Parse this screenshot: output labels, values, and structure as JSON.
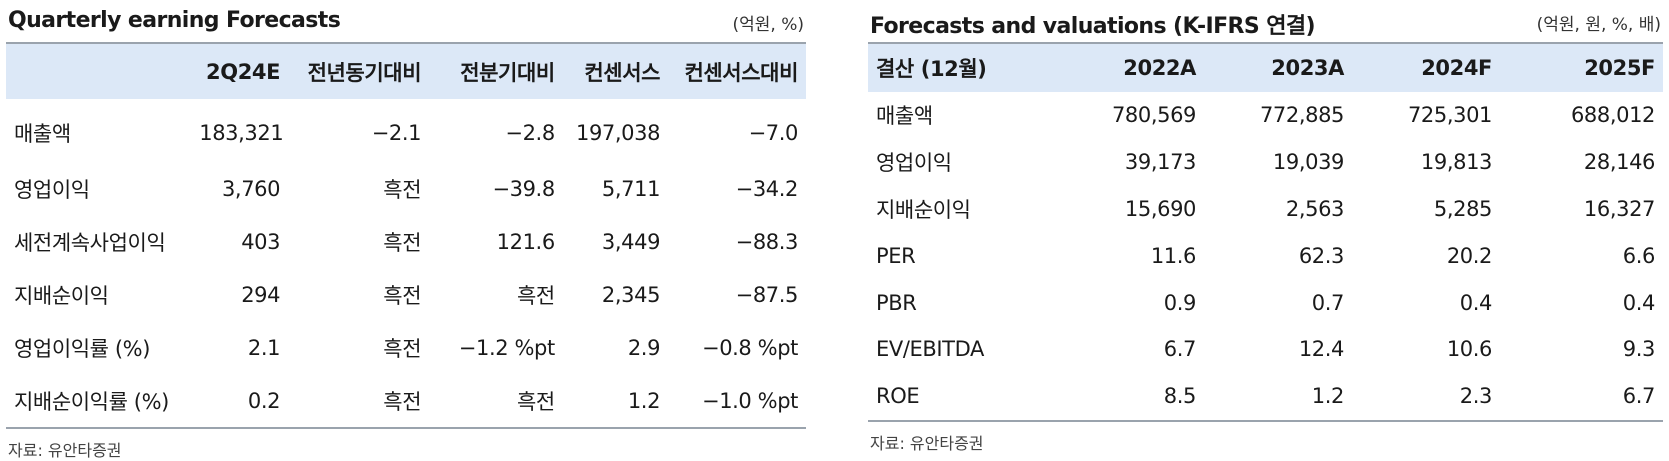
{
  "left": {
    "title": "Quarterly earning Forecasts",
    "unit": "(억원, %)",
    "headers": [
      "",
      "2Q24E",
      "전년동기대비",
      "전분기대비",
      "컨센서스",
      "컨센서스대비"
    ],
    "rows": [
      [
        "매출액",
        "183,321",
        "−2.1",
        "−2.8",
        "197,038",
        "−7.0"
      ],
      [
        "영업이익",
        "3,760",
        "흑전",
        "−39.8",
        "5,711",
        "−34.2"
      ],
      [
        "세전계속사업이익",
        "403",
        "흑전",
        "121.6",
        "3,449",
        "−88.3"
      ],
      [
        "지배순이익",
        "294",
        "흑전",
        "흑전",
        "2,345",
        "−87.5"
      ],
      [
        "영업이익률 (%)",
        "2.1",
        "흑전",
        "−1.2 %pt",
        "2.9",
        "−0.8 %pt"
      ],
      [
        "지배순이익률 (%)",
        "0.2",
        "흑전",
        "흑전",
        "1.2",
        "−1.0 %pt"
      ]
    ],
    "source": "자료: 유안타증권"
  },
  "right": {
    "title": "Forecasts and valuations (K-IFRS 연결)",
    "unit": "(억원, 원, %, 배)",
    "headers": [
      "결산 (12월)",
      "2022A",
      "2023A",
      "2024F",
      "2025F"
    ],
    "rows": [
      [
        "매출액",
        "780,569",
        "772,885",
        "725,301",
        "688,012"
      ],
      [
        "영업이익",
        "39,173",
        "19,039",
        "19,813",
        "28,146"
      ],
      [
        "지배순이익",
        "15,690",
        "2,563",
        "5,285",
        "16,327"
      ],
      [
        "PER",
        "11.6",
        "62.3",
        "20.2",
        "6.6"
      ],
      [
        "PBR",
        "0.9",
        "0.7",
        "0.4",
        "0.4"
      ],
      [
        "EV/EBITDA",
        "6.7",
        "12.4",
        "10.6",
        "9.3"
      ],
      [
        "ROE",
        "8.5",
        "1.2",
        "2.3",
        "6.7"
      ]
    ],
    "source": "자료: 유안타증권"
  }
}
